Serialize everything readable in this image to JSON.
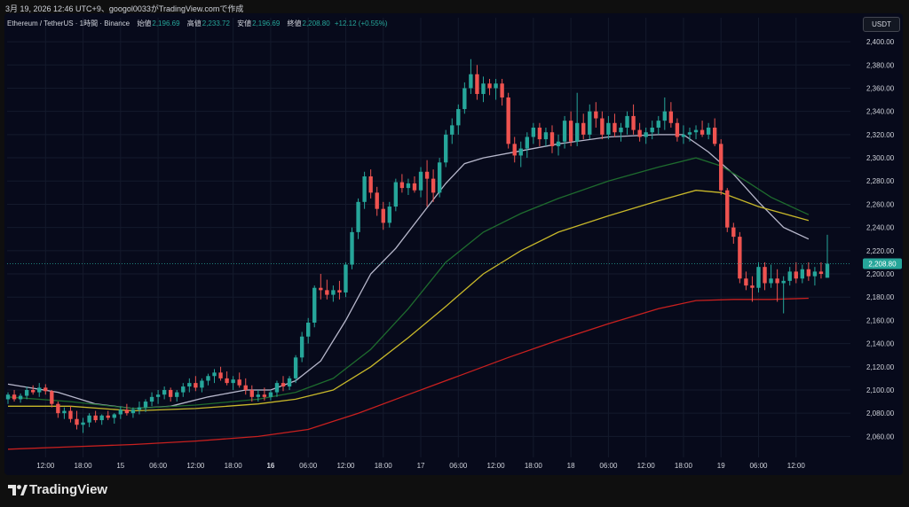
{
  "header": {
    "note": "3月 19, 2026 12:46 UTC+9、googol0033がTradingView.comで作成"
  },
  "legend": {
    "symbol": "Ethereum / TetherUS · 1時間 · Binance",
    "open_label": "始値",
    "open": "2,196.69",
    "high_label": "高値",
    "high": "2,233.72",
    "low_label": "安値",
    "low": "2,196.69",
    "close_label": "終値",
    "close": "2,208.80",
    "change": "+12.12 (+0.55%)"
  },
  "currency_button": "USDT",
  "last_price_label": "2,208.80",
  "logo_text": "TradingView",
  "colors": {
    "up": "#26a69a",
    "down": "#ef5350",
    "background": "#070a1b",
    "ma_fast": "#b8b8cc",
    "ma_mid": "#1e6b2e",
    "ma_slow": "#c8b82a",
    "ma_long": "#c8201f"
  },
  "chart_data": {
    "type": "candlestick",
    "ylim": [
      2045,
      2410
    ],
    "y_ticks": [
      2060,
      2080,
      2100,
      2120,
      2140,
      2160,
      2180,
      2200,
      2220,
      2240,
      2260,
      2280,
      2300,
      2320,
      2340,
      2360,
      2380,
      2400
    ],
    "y_tick_labels": [
      "2,060.00",
      "2,080.00",
      "2,100.00",
      "2,120.00",
      "2,140.00",
      "2,160.00",
      "2,180.00",
      "2,200.00",
      "2,220.00",
      "2,240.00",
      "2,260.00",
      "2,280.00",
      "2,300.00",
      "2,320.00",
      "2,340.00",
      "2,360.00",
      "2,380.00",
      "2,400.00"
    ],
    "x_ticks": [
      {
        "index": 6,
        "label": "12:00",
        "bold": false
      },
      {
        "index": 12,
        "label": "18:00",
        "bold": false
      },
      {
        "index": 18,
        "label": "15",
        "bold": false
      },
      {
        "index": 24,
        "label": "06:00",
        "bold": false
      },
      {
        "index": 30,
        "label": "12:00",
        "bold": false
      },
      {
        "index": 36,
        "label": "18:00",
        "bold": false
      },
      {
        "index": 42,
        "label": "16",
        "bold": true
      },
      {
        "index": 48,
        "label": "06:00",
        "bold": false
      },
      {
        "index": 54,
        "label": "12:00",
        "bold": false
      },
      {
        "index": 60,
        "label": "18:00",
        "bold": false
      },
      {
        "index": 66,
        "label": "17",
        "bold": false
      },
      {
        "index": 72,
        "label": "06:00",
        "bold": false
      },
      {
        "index": 78,
        "label": "12:00",
        "bold": false
      },
      {
        "index": 84,
        "label": "18:00",
        "bold": false
      },
      {
        "index": 90,
        "label": "18",
        "bold": false
      },
      {
        "index": 96,
        "label": "06:00",
        "bold": false
      },
      {
        "index": 102,
        "label": "12:00",
        "bold": false
      },
      {
        "index": 108,
        "label": "18:00",
        "bold": false
      },
      {
        "index": 114,
        "label": "19",
        "bold": false
      },
      {
        "index": 120,
        "label": "06:00",
        "bold": false
      },
      {
        "index": 126,
        "label": "12:00",
        "bold": false
      }
    ],
    "candles": [
      [
        2092,
        2098,
        2088,
        2096
      ],
      [
        2096,
        2100,
        2090,
        2092
      ],
      [
        2092,
        2097,
        2089,
        2095
      ],
      [
        2095,
        2103,
        2092,
        2100
      ],
      [
        2100,
        2104,
        2096,
        2098
      ],
      [
        2098,
        2106,
        2094,
        2102
      ],
      [
        2102,
        2105,
        2096,
        2099
      ],
      [
        2099,
        2100,
        2085,
        2088
      ],
      [
        2088,
        2090,
        2076,
        2080
      ],
      [
        2080,
        2085,
        2075,
        2082
      ],
      [
        2082,
        2086,
        2072,
        2075
      ],
      [
        2075,
        2082,
        2066,
        2070
      ],
      [
        2070,
        2076,
        2063,
        2072
      ],
      [
        2072,
        2080,
        2068,
        2078
      ],
      [
        2078,
        2082,
        2072,
        2074
      ],
      [
        2074,
        2079,
        2070,
        2078
      ],
      [
        2078,
        2082,
        2074,
        2076
      ],
      [
        2076,
        2080,
        2071,
        2079
      ],
      [
        2079,
        2086,
        2075,
        2083
      ],
      [
        2083,
        2088,
        2078,
        2080
      ],
      [
        2080,
        2085,
        2076,
        2083
      ],
      [
        2083,
        2090,
        2079,
        2085
      ],
      [
        2085,
        2092,
        2081,
        2090
      ],
      [
        2090,
        2098,
        2086,
        2094
      ],
      [
        2094,
        2100,
        2088,
        2096
      ],
      [
        2096,
        2103,
        2092,
        2100
      ],
      [
        2100,
        2102,
        2090,
        2094
      ],
      [
        2094,
        2100,
        2090,
        2098
      ],
      [
        2098,
        2106,
        2094,
        2103
      ],
      [
        2103,
        2110,
        2098,
        2106
      ],
      [
        2106,
        2112,
        2099,
        2102
      ],
      [
        2102,
        2110,
        2098,
        2108
      ],
      [
        2108,
        2114,
        2104,
        2112
      ],
      [
        2112,
        2118,
        2106,
        2115
      ],
      [
        2115,
        2120,
        2108,
        2110
      ],
      [
        2110,
        2116,
        2104,
        2106
      ],
      [
        2106,
        2112,
        2100,
        2109
      ],
      [
        2109,
        2115,
        2102,
        2104
      ],
      [
        2104,
        2110,
        2096,
        2100
      ],
      [
        2100,
        2104,
        2090,
        2094
      ],
      [
        2094,
        2100,
        2090,
        2096
      ],
      [
        2096,
        2102,
        2091,
        2094
      ],
      [
        2094,
        2100,
        2091,
        2098
      ],
      [
        2098,
        2108,
        2094,
        2106
      ],
      [
        2106,
        2112,
        2099,
        2103
      ],
      [
        2103,
        2112,
        2100,
        2110
      ],
      [
        2110,
        2130,
        2106,
        2128
      ],
      [
        2128,
        2150,
        2124,
        2146
      ],
      [
        2146,
        2162,
        2140,
        2158
      ],
      [
        2158,
        2190,
        2154,
        2188
      ],
      [
        2188,
        2200,
        2178,
        2186
      ],
      [
        2186,
        2195,
        2178,
        2182
      ],
      [
        2182,
        2190,
        2176,
        2186
      ],
      [
        2186,
        2194,
        2178,
        2184
      ],
      [
        2184,
        2210,
        2180,
        2208
      ],
      [
        2208,
        2240,
        2204,
        2236
      ],
      [
        2236,
        2265,
        2230,
        2262
      ],
      [
        2262,
        2288,
        2256,
        2284
      ],
      [
        2284,
        2290,
        2265,
        2270
      ],
      [
        2270,
        2275,
        2250,
        2256
      ],
      [
        2256,
        2262,
        2238,
        2244
      ],
      [
        2244,
        2262,
        2240,
        2258
      ],
      [
        2258,
        2282,
        2254,
        2279
      ],
      [
        2279,
        2286,
        2270,
        2274
      ],
      [
        2274,
        2282,
        2268,
        2278
      ],
      [
        2278,
        2284,
        2270,
        2272
      ],
      [
        2272,
        2292,
        2266,
        2288
      ],
      [
        2288,
        2298,
        2258,
        2282
      ],
      [
        2282,
        2290,
        2262,
        2270
      ],
      [
        2270,
        2300,
        2266,
        2296
      ],
      [
        2296,
        2324,
        2292,
        2320
      ],
      [
        2320,
        2334,
        2312,
        2328
      ],
      [
        2328,
        2346,
        2320,
        2342
      ],
      [
        2342,
        2365,
        2338,
        2360
      ],
      [
        2360,
        2385,
        2355,
        2372
      ],
      [
        2372,
        2380,
        2350,
        2355
      ],
      [
        2355,
        2370,
        2348,
        2364
      ],
      [
        2364,
        2368,
        2354,
        2360
      ],
      [
        2360,
        2368,
        2350,
        2364
      ],
      [
        2364,
        2368,
        2345,
        2352
      ],
      [
        2352,
        2356,
        2308,
        2312
      ],
      [
        2312,
        2318,
        2296,
        2302
      ],
      [
        2302,
        2314,
        2292,
        2308
      ],
      [
        2308,
        2322,
        2300,
        2318
      ],
      [
        2318,
        2330,
        2312,
        2326
      ],
      [
        2326,
        2330,
        2310,
        2316
      ],
      [
        2316,
        2326,
        2310,
        2322
      ],
      [
        2322,
        2328,
        2304,
        2310
      ],
      [
        2310,
        2320,
        2302,
        2314
      ],
      [
        2314,
        2336,
        2308,
        2332
      ],
      [
        2332,
        2340,
        2310,
        2314
      ],
      [
        2314,
        2356,
        2310,
        2330
      ],
      [
        2330,
        2338,
        2316,
        2320
      ],
      [
        2320,
        2346,
        2316,
        2340
      ],
      [
        2340,
        2348,
        2326,
        2334
      ],
      [
        2334,
        2340,
        2316,
        2320
      ],
      [
        2320,
        2336,
        2316,
        2330
      ],
      [
        2330,
        2338,
        2318,
        2322
      ],
      [
        2322,
        2330,
        2314,
        2326
      ],
      [
        2326,
        2340,
        2320,
        2336
      ],
      [
        2336,
        2346,
        2320,
        2324
      ],
      [
        2324,
        2330,
        2314,
        2318
      ],
      [
        2318,
        2326,
        2312,
        2322
      ],
      [
        2322,
        2332,
        2316,
        2326
      ],
      [
        2326,
        2336,
        2320,
        2332
      ],
      [
        2332,
        2352,
        2324,
        2340
      ],
      [
        2340,
        2348,
        2326,
        2330
      ],
      [
        2330,
        2334,
        2314,
        2318
      ],
      [
        2318,
        2328,
        2312,
        2320
      ],
      [
        2320,
        2326,
        2314,
        2322
      ],
      [
        2322,
        2328,
        2316,
        2324
      ],
      [
        2324,
        2332,
        2318,
        2320
      ],
      [
        2320,
        2330,
        2316,
        2326
      ],
      [
        2326,
        2334,
        2310,
        2312
      ],
      [
        2312,
        2316,
        2268,
        2272
      ],
      [
        2272,
        2274,
        2236,
        2240
      ],
      [
        2240,
        2244,
        2226,
        2232
      ],
      [
        2232,
        2236,
        2192,
        2196
      ],
      [
        2196,
        2202,
        2186,
        2190
      ],
      [
        2190,
        2198,
        2176,
        2188
      ],
      [
        2188,
        2210,
        2184,
        2206
      ],
      [
        2206,
        2210,
        2186,
        2192
      ],
      [
        2192,
        2208,
        2188,
        2196
      ],
      [
        2196,
        2204,
        2176,
        2192
      ],
      [
        2192,
        2198,
        2166,
        2194
      ],
      [
        2194,
        2206,
        2190,
        2202
      ],
      [
        2202,
        2210,
        2192,
        2196
      ],
      [
        2196,
        2208,
        2192,
        2204
      ],
      [
        2204,
        2210,
        2194,
        2198
      ],
      [
        2198,
        2206,
        2190,
        2202
      ],
      [
        2202,
        2210,
        2196,
        2200
      ],
      [
        2196.69,
        2233.72,
        2196.69,
        2208.8
      ]
    ],
    "moving_averages": [
      {
        "color": "#b8b8cc",
        "points": [
          [
            0,
            2105
          ],
          [
            8,
            2098
          ],
          [
            14,
            2088
          ],
          [
            20,
            2084
          ],
          [
            26,
            2086
          ],
          [
            32,
            2094
          ],
          [
            38,
            2100
          ],
          [
            42,
            2100
          ],
          [
            46,
            2108
          ],
          [
            50,
            2125
          ],
          [
            54,
            2160
          ],
          [
            58,
            2200
          ],
          [
            62,
            2222
          ],
          [
            66,
            2250
          ],
          [
            70,
            2278
          ],
          [
            73,
            2295
          ],
          [
            76,
            2300
          ],
          [
            82,
            2306
          ],
          [
            88,
            2312
          ],
          [
            96,
            2318
          ],
          [
            104,
            2320
          ],
          [
            108,
            2320
          ],
          [
            112,
            2305
          ],
          [
            116,
            2286
          ],
          [
            120,
            2262
          ],
          [
            124,
            2240
          ],
          [
            128,
            2230
          ]
        ]
      },
      {
        "color": "#1e6b2e",
        "points": [
          [
            0,
            2094
          ],
          [
            10,
            2090
          ],
          [
            20,
            2084
          ],
          [
            30,
            2087
          ],
          [
            40,
            2092
          ],
          [
            46,
            2098
          ],
          [
            52,
            2110
          ],
          [
            58,
            2135
          ],
          [
            64,
            2170
          ],
          [
            70,
            2210
          ],
          [
            76,
            2236
          ],
          [
            82,
            2252
          ],
          [
            88,
            2265
          ],
          [
            96,
            2280
          ],
          [
            104,
            2292
          ],
          [
            110,
            2300
          ],
          [
            114,
            2293
          ],
          [
            118,
            2280
          ],
          [
            122,
            2266
          ],
          [
            128,
            2251
          ]
        ]
      },
      {
        "color": "#c8b82a",
        "points": [
          [
            0,
            2086
          ],
          [
            10,
            2086
          ],
          [
            20,
            2082
          ],
          [
            30,
            2084
          ],
          [
            40,
            2088
          ],
          [
            46,
            2092
          ],
          [
            52,
            2100
          ],
          [
            58,
            2120
          ],
          [
            64,
            2145
          ],
          [
            70,
            2172
          ],
          [
            76,
            2200
          ],
          [
            82,
            2220
          ],
          [
            88,
            2236
          ],
          [
            96,
            2250
          ],
          [
            104,
            2263
          ],
          [
            110,
            2272
          ],
          [
            114,
            2270
          ],
          [
            120,
            2258
          ],
          [
            128,
            2246
          ]
        ]
      },
      {
        "color": "#c8201f",
        "points": [
          [
            0,
            2049
          ],
          [
            10,
            2051
          ],
          [
            20,
            2053
          ],
          [
            30,
            2056
          ],
          [
            40,
            2060
          ],
          [
            48,
            2066
          ],
          [
            56,
            2080
          ],
          [
            64,
            2096
          ],
          [
            72,
            2112
          ],
          [
            80,
            2128
          ],
          [
            88,
            2143
          ],
          [
            96,
            2157
          ],
          [
            104,
            2170
          ],
          [
            110,
            2177
          ],
          [
            116,
            2178
          ],
          [
            122,
            2178
          ],
          [
            128,
            2179
          ]
        ]
      }
    ]
  }
}
